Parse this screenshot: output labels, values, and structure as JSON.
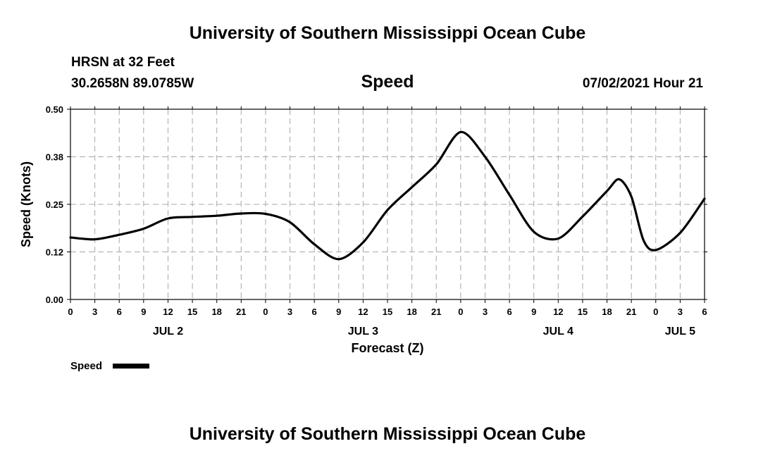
{
  "header": {
    "top_title": "University of Southern Mississippi Ocean Cube",
    "bottom_title": "University of Southern Mississippi Ocean Cube",
    "station": "HRSN at 32 Feet",
    "coords": "30.2658N  89.0785W",
    "variable": "Speed",
    "datetime": "07/02/2021 Hour 21"
  },
  "legend": {
    "label": "Speed",
    "color": "#000000"
  },
  "chart_data": {
    "type": "line",
    "title": "Speed",
    "xlabel": "Forecast (Z)",
    "ylabel": "Speed (Knots)",
    "x_unit": "hours since JUL 2 00Z",
    "xlim": [
      0,
      78
    ],
    "ylim": [
      0.0,
      0.5
    ],
    "grid": true,
    "x_ticks": [
      0,
      3,
      6,
      9,
      12,
      15,
      18,
      21,
      24,
      27,
      30,
      33,
      36,
      39,
      42,
      45,
      48,
      51,
      54,
      57,
      60,
      63,
      66,
      69,
      72,
      75,
      78
    ],
    "x_tick_labels": [
      "0",
      "3",
      "6",
      "9",
      "12",
      "15",
      "18",
      "21",
      "0",
      "3",
      "6",
      "9",
      "12",
      "15",
      "18",
      "21",
      "0",
      "3",
      "6",
      "9",
      "12",
      "15",
      "18",
      "21",
      "0",
      "3",
      "6"
    ],
    "y_ticks": [
      0.0,
      0.125,
      0.25,
      0.375,
      0.5
    ],
    "y_tick_labels": [
      "0.00",
      "0.12",
      "0.25",
      "0.38",
      "0.50"
    ],
    "date_labels": [
      {
        "x": 12,
        "label": "JUL 2"
      },
      {
        "x": 36,
        "label": "JUL 3"
      },
      {
        "x": 60,
        "label": "JUL 4"
      },
      {
        "x": 75,
        "label": "JUL 5"
      }
    ],
    "series": [
      {
        "name": "Speed",
        "x": [
          0,
          3,
          6,
          9,
          12,
          15,
          18,
          21,
          24,
          27,
          30,
          33,
          36,
          39,
          42,
          45,
          48,
          51,
          54,
          57,
          60,
          63,
          66,
          67.5,
          69,
          70.5,
          72,
          75,
          78
        ],
        "values": [
          0.163,
          0.158,
          0.17,
          0.186,
          0.213,
          0.217,
          0.22,
          0.226,
          0.225,
          0.203,
          0.145,
          0.106,
          0.15,
          0.235,
          0.295,
          0.355,
          0.44,
          0.375,
          0.275,
          0.178,
          0.16,
          0.218,
          0.285,
          0.316,
          0.27,
          0.155,
          0.13,
          0.175,
          0.265
        ]
      }
    ]
  }
}
